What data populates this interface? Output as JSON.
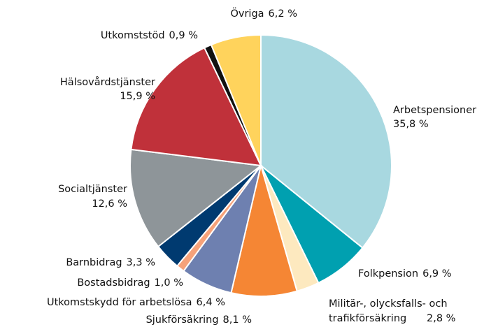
{
  "chart_data": {
    "type": "pie",
    "categories": [
      "Arbetspensioner",
      "Folkpension",
      "Militär-, olycksfalls- och trafikförsäkring",
      "Sjukförsäkring",
      "Utkomstskydd för arbetslösa",
      "Bostadsbidrag",
      "Barnbidrag",
      "Socialtjänster",
      "Hälsovårdstjänster",
      "Utkomststöd",
      "Övriga"
    ],
    "values": [
      35.8,
      6.9,
      2.8,
      8.1,
      6.4,
      1.0,
      3.3,
      12.6,
      15.9,
      0.9,
      6.2
    ],
    "value_labels": [
      "35,8 %",
      "6,9 %",
      "2,8 %",
      "8,1 %",
      "6,4 %",
      "1,0 %",
      "3,3 %",
      "12,6 %",
      "15,9 %",
      "0,9 %",
      "6,2 %"
    ],
    "colors": [
      "#a8d8e0",
      "#00a0b0",
      "#fde9bf",
      "#f58634",
      "#6e80b0",
      "#f6a27a",
      "#003a70",
      "#8e9599",
      "#c0313a",
      "#111111",
      "#ffd35c"
    ]
  }
}
